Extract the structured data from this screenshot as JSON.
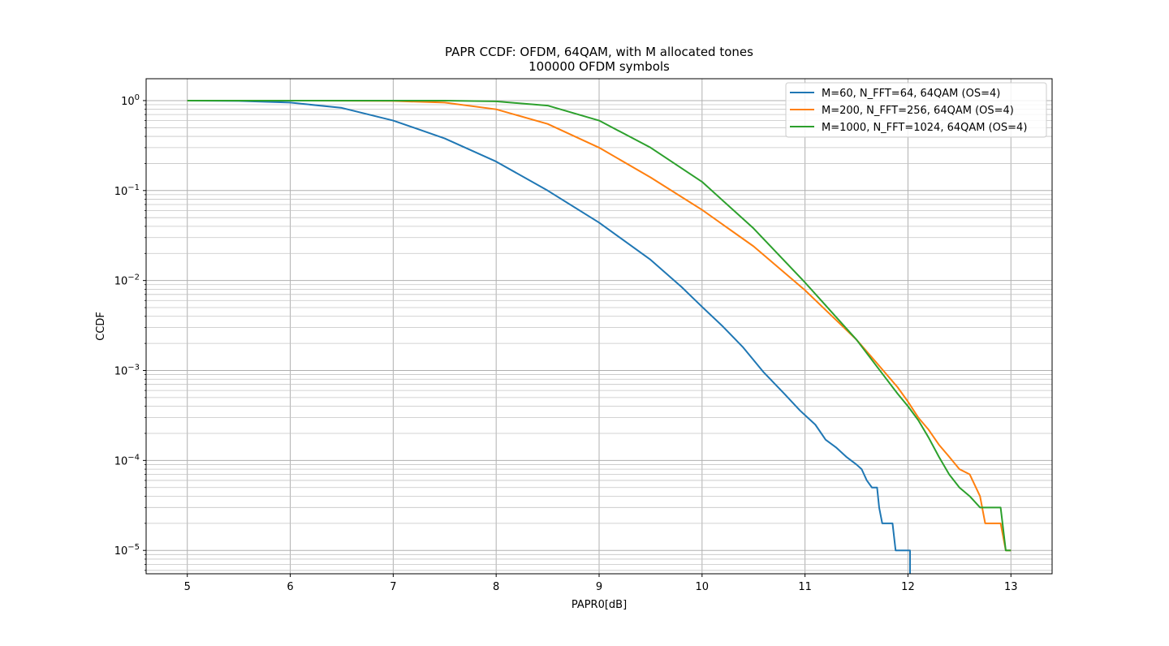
{
  "chart_data": {
    "type": "line",
    "title": "PAPR CCDF: OFDM, 64QAM, with M allocated tones",
    "subtitle": "100000 OFDM symbols",
    "xlabel": "PAPR0[dB]",
    "ylabel": "CCDF",
    "xlim": [
      4.6,
      13.4
    ],
    "ylim": [
      5.5e-06,
      1.75
    ],
    "yscale": "log",
    "grid": "major-and-minor",
    "legend_position": "top-right",
    "x_ticks": [
      5,
      6,
      7,
      8,
      9,
      10,
      11,
      12,
      13
    ],
    "x_tick_labels": [
      "5",
      "6",
      "7",
      "8",
      "9",
      "10",
      "11",
      "12",
      "13"
    ],
    "y_ticks": [
      1e-05,
      0.0001,
      0.001,
      0.01,
      0.1,
      1
    ],
    "y_tick_bases": [
      "10",
      "10",
      "10",
      "10",
      "10",
      "10"
    ],
    "y_tick_exponents": [
      "−5",
      "−4",
      "−3",
      "−2",
      "−1",
      "0"
    ],
    "series": [
      {
        "name": "M=60, N_FFT=64, 64QAM (OS=4)",
        "color": "#1f77b4",
        "x": [
          5.0,
          5.5,
          6.0,
          6.5,
          7.0,
          7.5,
          8.0,
          8.5,
          9.0,
          9.5,
          9.8,
          10.0,
          10.2,
          10.4,
          10.6,
          10.8,
          10.95,
          11.1,
          11.2,
          11.3,
          11.4,
          11.5,
          11.55,
          11.6,
          11.65,
          11.7,
          11.72,
          11.75,
          11.8,
          11.85,
          11.88,
          11.9,
          11.95,
          12.0,
          12.02,
          12.02
        ],
        "y": [
          1.0,
          0.99,
          0.95,
          0.83,
          0.6,
          0.38,
          0.21,
          0.1,
          0.044,
          0.017,
          0.0085,
          0.0051,
          0.0031,
          0.0018,
          0.00095,
          0.00055,
          0.00036,
          0.00025,
          0.00017,
          0.00014,
          0.00011,
          9e-05,
          8e-05,
          6e-05,
          5e-05,
          5e-05,
          3e-05,
          2e-05,
          2e-05,
          2e-05,
          1e-05,
          1e-05,
          1e-05,
          1e-05,
          1e-05,
          5e-06
        ]
      },
      {
        "name": "M=200, N_FFT=256, 64QAM (OS=4)",
        "color": "#ff7f0e",
        "x": [
          5.0,
          6.0,
          7.0,
          7.5,
          8.0,
          8.5,
          9.0,
          9.5,
          10.0,
          10.5,
          11.0,
          11.5,
          11.7,
          11.9,
          12.0,
          12.1,
          12.2,
          12.3,
          12.4,
          12.5,
          12.6,
          12.7,
          12.75,
          12.8,
          12.9,
          12.95,
          13.0
        ],
        "y": [
          1.0,
          1.0,
          0.99,
          0.95,
          0.8,
          0.55,
          0.3,
          0.14,
          0.061,
          0.024,
          0.0078,
          0.0022,
          0.0012,
          0.00065,
          0.00045,
          0.0003,
          0.00022,
          0.00015,
          0.00011,
          8e-05,
          7e-05,
          4e-05,
          2e-05,
          2e-05,
          2e-05,
          1e-05,
          1e-05
        ]
      },
      {
        "name": "M=1000, N_FFT=1024, 64QAM (OS=4)",
        "color": "#2ca02c",
        "x": [
          5.0,
          6.0,
          7.0,
          7.5,
          8.0,
          8.5,
          9.0,
          9.5,
          10.0,
          10.5,
          11.0,
          11.5,
          11.7,
          11.9,
          12.0,
          12.1,
          12.2,
          12.3,
          12.4,
          12.5,
          12.6,
          12.7,
          12.8,
          12.9,
          12.95,
          13.0
        ],
        "y": [
          1.0,
          1.0,
          1.0,
          1.0,
          0.98,
          0.88,
          0.6,
          0.3,
          0.125,
          0.038,
          0.0095,
          0.0022,
          0.0011,
          0.00055,
          0.0004,
          0.00028,
          0.00018,
          0.00011,
          7e-05,
          5e-05,
          4e-05,
          3e-05,
          3e-05,
          3e-05,
          1e-05,
          1e-05
        ]
      }
    ]
  }
}
